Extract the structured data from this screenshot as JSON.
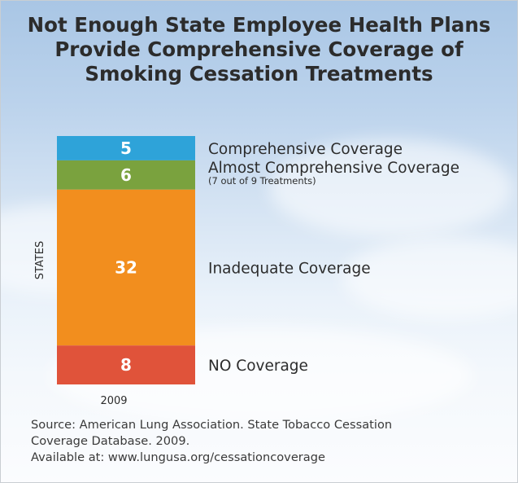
{
  "title": "Not Enough State Employee Health Plans Provide Comprehensive Coverage of Smoking Cessation Treatments",
  "chart_data": {
    "type": "bar",
    "stacked": true,
    "categories": [
      "2009"
    ],
    "ylabel": "STATES",
    "series": [
      {
        "name": "Comprehensive Coverage",
        "values": [
          5
        ],
        "color": "#2ea3d9"
      },
      {
        "name": "Almost Comprehensive Coverage",
        "note": "(7 out of 9 Treatments)",
        "values": [
          6
        ],
        "color": "#7aa23e"
      },
      {
        "name": "Inadequate Coverage",
        "values": [
          32
        ],
        "color": "#f28e1e"
      },
      {
        "name": "NO Coverage",
        "values": [
          8
        ],
        "color": "#e0533a"
      }
    ]
  },
  "source": {
    "line1": "Source: American Lung Association. State Tobacco Cessation",
    "line2": "Coverage Database. 2009.",
    "line3": "Available at: www.lungusa.org/cessationcoverage"
  }
}
